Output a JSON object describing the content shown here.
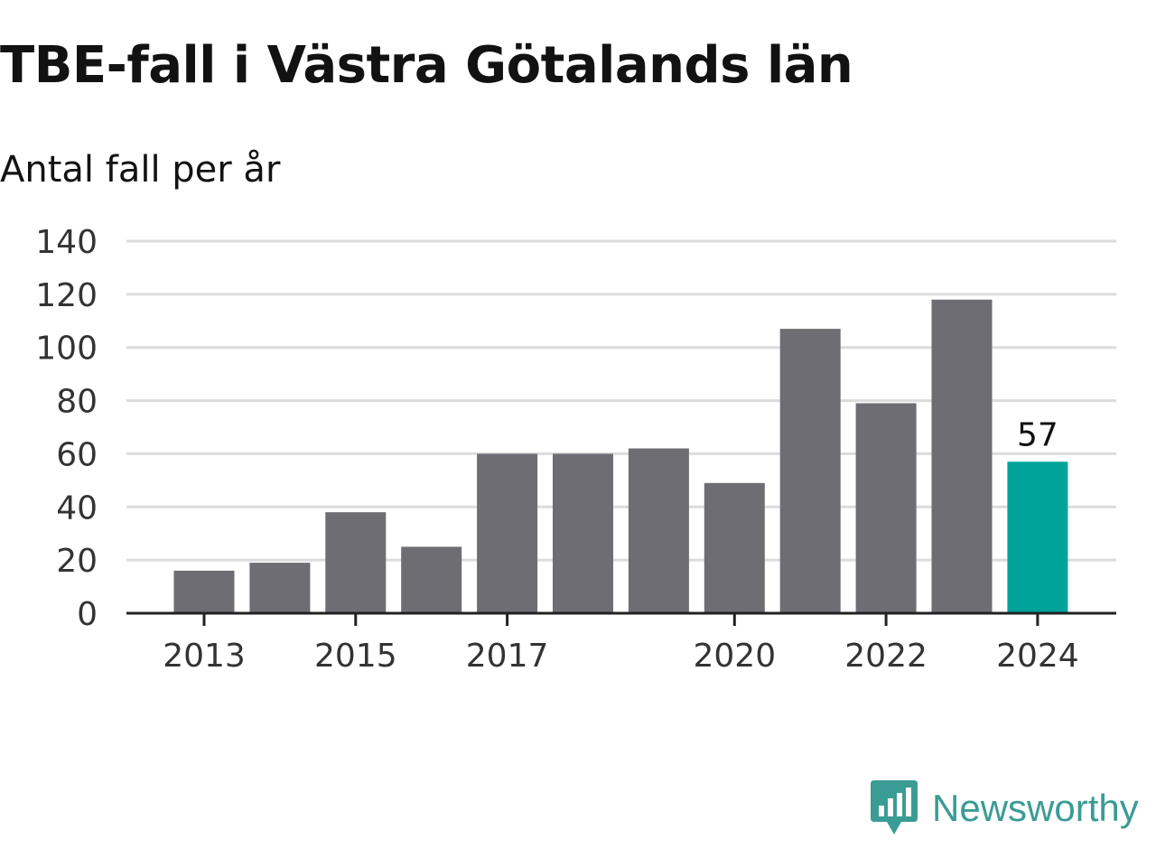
{
  "title": "TBE-fall i Västra Götalands län",
  "subtitle": "Antal fall per år",
  "brand": {
    "name": "Newsworthy",
    "logo_icon": "newsworthy-bar-chart-speech-bubble-icon",
    "color": "#3a9c94"
  },
  "colors": {
    "bar": "#6e6d73",
    "highlight": "#00a39a",
    "grid": "#dcdcdc",
    "axis": "#222222",
    "tick_text": "#333333"
  },
  "chart_data": {
    "type": "bar",
    "title": "TBE-fall i Västra Götalands län",
    "subtitle": "Antal fall per år",
    "xlabel": "",
    "ylabel": "",
    "categories": [
      "2013",
      "2014",
      "2015",
      "2016",
      "2017",
      "2018",
      "2019",
      "2020",
      "2021",
      "2022",
      "2023",
      "2024"
    ],
    "values": [
      16,
      19,
      38,
      25,
      60,
      60,
      62,
      49,
      107,
      79,
      118,
      57
    ],
    "highlight_index": 11,
    "data_labels": [
      {
        "category": "2024",
        "text": "57"
      }
    ],
    "x_tick_labels": [
      "2013",
      "2015",
      "2017",
      "2020",
      "2022",
      "2024"
    ],
    "y_ticks": [
      0,
      20,
      40,
      60,
      80,
      100,
      120,
      140
    ],
    "ylim": [
      0,
      140
    ],
    "grid": true,
    "legend": "none"
  }
}
